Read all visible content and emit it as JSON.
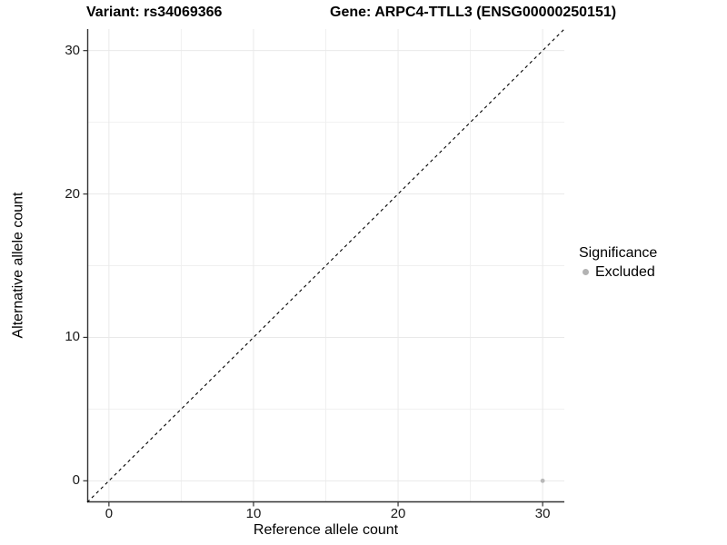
{
  "chart_data": {
    "type": "scatter",
    "title_left": "Variant: rs34069366",
    "title_right": "Gene: ARPC4-TTLL3 (ENSG00000250151)",
    "xlabel": "Reference allele count",
    "ylabel": "Alternative allele count",
    "xlim": [
      -1.5,
      31.5
    ],
    "ylim": [
      -1.5,
      31.5
    ],
    "x_ticks": [
      0,
      10,
      20,
      30
    ],
    "y_ticks": [
      0,
      10,
      20,
      30
    ],
    "x_minor_gridlines": [
      5,
      15,
      25
    ],
    "y_minor_gridlines": [
      5,
      15,
      25
    ],
    "grid": "on",
    "legend_position": "right",
    "legend": {
      "title": "Significance",
      "items": [
        {
          "label": "Excluded",
          "color": "#b3b3b3"
        }
      ]
    },
    "series": [
      {
        "name": "Excluded",
        "color": "#b9b9b9",
        "points": [
          {
            "x": 30,
            "y": 0
          }
        ]
      }
    ],
    "reference_line": {
      "type": "identity",
      "style": "dashed",
      "color": "#000000"
    }
  },
  "colors": {
    "background": "#ffffff",
    "gridline_major": "#e9e9e9",
    "gridline_minor": "#f0f0f0",
    "axis_line": "#333333",
    "tick_mark": "#333333",
    "tick_text": "#1a1a1a",
    "title_text": "#000000"
  }
}
